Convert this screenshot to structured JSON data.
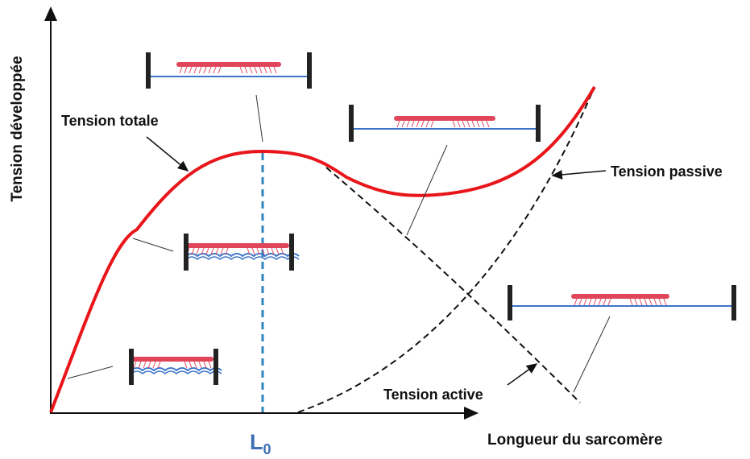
{
  "axes": {
    "y_label": "Tension développée",
    "x_label": "Longueur du sarcomère"
  },
  "marker": {
    "main": "L",
    "sub": "0"
  },
  "curves": {
    "total": "Tension totale",
    "passive": "Tension passive",
    "active": "Tension active"
  }
}
